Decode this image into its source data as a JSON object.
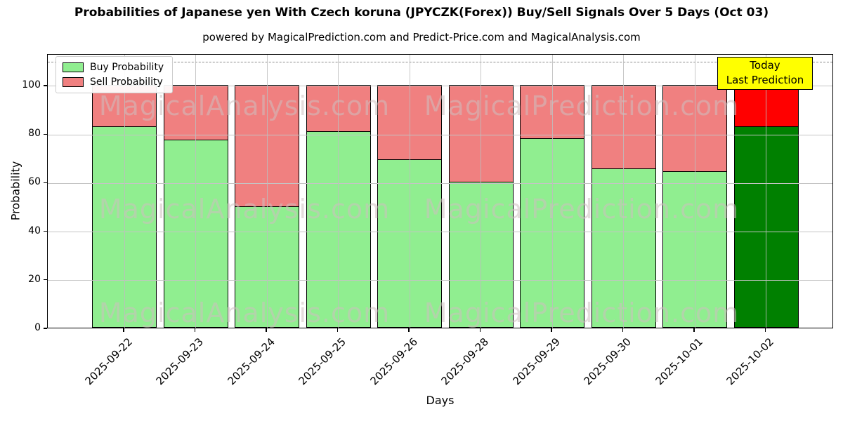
{
  "title": "Probabilities of Japanese yen With Czech koruna (JPYCZK(Forex)) Buy/Sell Signals Over 5 Days (Oct 03)",
  "subtitle": "powered by MagicalPrediction.com and Predict-Price.com and MagicalAnalysis.com",
  "watermarks": {
    "left_text": "MagicalAnalysis.com",
    "right_text": "MagicalPrediction.com"
  },
  "legend": {
    "items": [
      {
        "label": "Buy Probability",
        "color": "#90ee90"
      },
      {
        "label": "Sell Probability",
        "color": "#f08080"
      }
    ]
  },
  "annotation": {
    "line1": "Today",
    "line2": "Last Prediction",
    "bg_color": "#ffff00"
  },
  "axes": {
    "xlabel": "Days",
    "ylabel": "Probability",
    "yticks": [
      0,
      20,
      40,
      60,
      80,
      100
    ],
    "ylim": [
      0,
      113
    ],
    "dashed_line_y": 110
  },
  "chart_data": {
    "type": "bar",
    "stacked": true,
    "title": "Probabilities of Japanese yen With Czech koruna (JPYCZK(Forex)) Buy/Sell Signals Over 5 Days (Oct 03)",
    "xlabel": "Days",
    "ylabel": "Probability",
    "ylim": [
      0,
      113
    ],
    "grid": true,
    "legend_position": "upper left",
    "categories": [
      "2025-09-22",
      "2025-09-23",
      "2025-09-24",
      "2025-09-25",
      "2025-09-26",
      "2025-09-28",
      "2025-09-29",
      "2025-09-30",
      "2025-10-01",
      "2025-10-02"
    ],
    "series": [
      {
        "name": "Buy Probability",
        "color": "#90ee90",
        "last_bar_color": "#008000",
        "values": [
          83,
          77.5,
          50,
          81,
          69.5,
          60,
          78,
          65.5,
          64.5,
          83
        ]
      },
      {
        "name": "Sell Probability",
        "color": "#f08080",
        "last_bar_color": "#ff0000",
        "values": [
          17,
          22.5,
          50,
          19,
          30.5,
          40,
          22,
          34.5,
          35.5,
          17
        ]
      }
    ],
    "dashed_line_y": 110,
    "highlighted_category": "2025-10-02"
  }
}
